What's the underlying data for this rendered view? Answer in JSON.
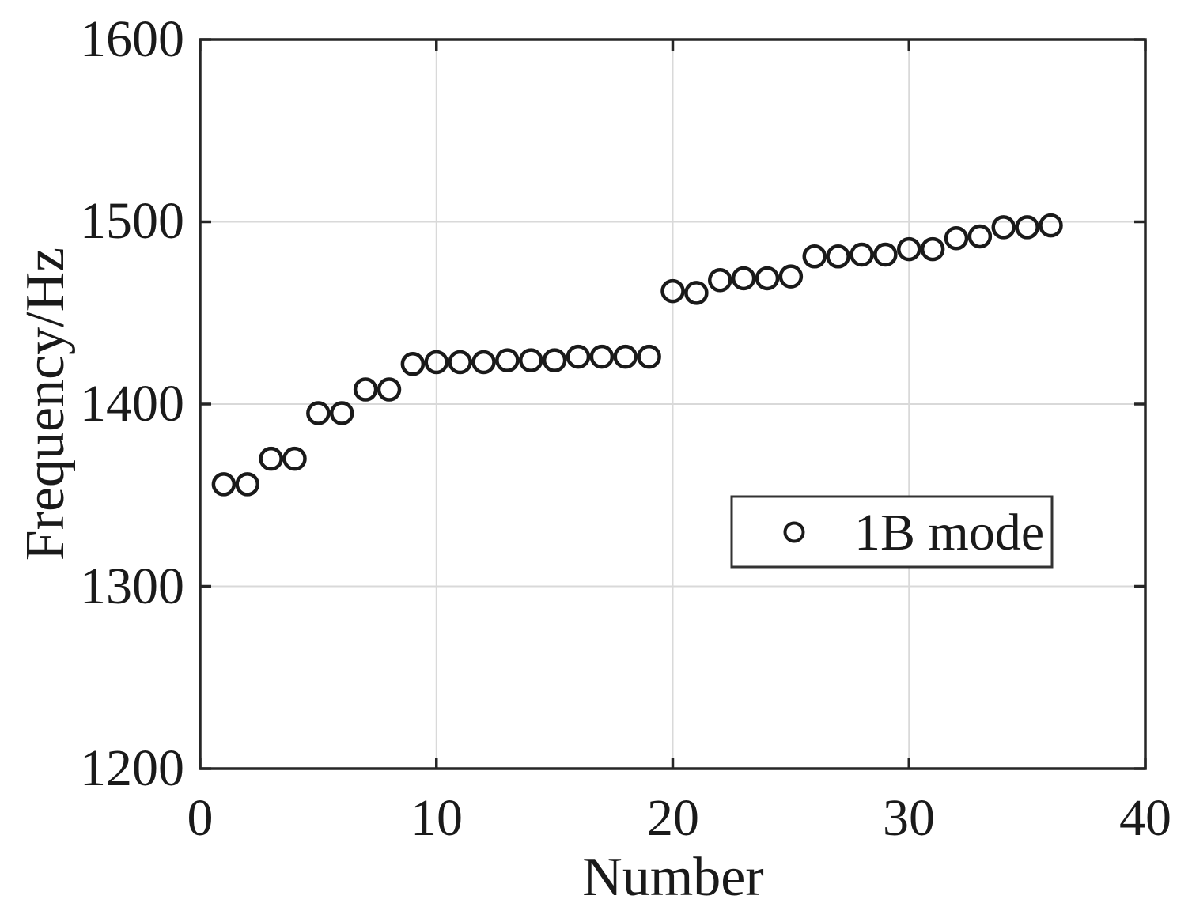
{
  "figure": {
    "background": "#ffffff",
    "axis_color": "#262626",
    "grid_color": "#d9d9d9",
    "marker_color": "#1a1a1a",
    "text_color": "#1a1a1a",
    "legend_border_color": "#333333"
  },
  "chart_data": {
    "type": "scatter",
    "title": "",
    "xlabel": "Number",
    "ylabel": "Frequency/Hz",
    "xlim": [
      0,
      40
    ],
    "ylim": [
      1200,
      1600
    ],
    "grid": true,
    "xticks": [
      0,
      10,
      20,
      30,
      40
    ],
    "yticks": [
      1200,
      1300,
      1400,
      1500,
      1600
    ],
    "xtick_labels": [
      "0",
      "10",
      "20",
      "30",
      "40"
    ],
    "ytick_labels_top_to_bottom": [
      "1600",
      "1500",
      "1400",
      "1300",
      "1200"
    ],
    "legend": {
      "position": "inside-right",
      "entries": [
        {
          "label": "1B mode",
          "marker": "open-circle"
        }
      ]
    },
    "series": [
      {
        "name": "1B mode",
        "marker": "open-circle",
        "x": [
          1,
          2,
          3,
          4,
          5,
          6,
          7,
          8,
          9,
          10,
          11,
          12,
          13,
          14,
          15,
          16,
          17,
          18,
          19,
          20,
          21,
          22,
          23,
          24,
          25,
          26,
          27,
          28,
          29,
          30,
          31,
          32,
          33,
          34,
          35,
          36
        ],
        "y": [
          1356,
          1356,
          1370,
          1370,
          1395,
          1395,
          1408,
          1408,
          1422,
          1423,
          1423,
          1423,
          1424,
          1424,
          1424,
          1426,
          1426,
          1426,
          1426,
          1462,
          1461,
          1468,
          1469,
          1469,
          1470,
          1481,
          1481,
          1482,
          1482,
          1485,
          1485,
          1491,
          1492,
          1497,
          1497,
          1498
        ]
      }
    ]
  }
}
